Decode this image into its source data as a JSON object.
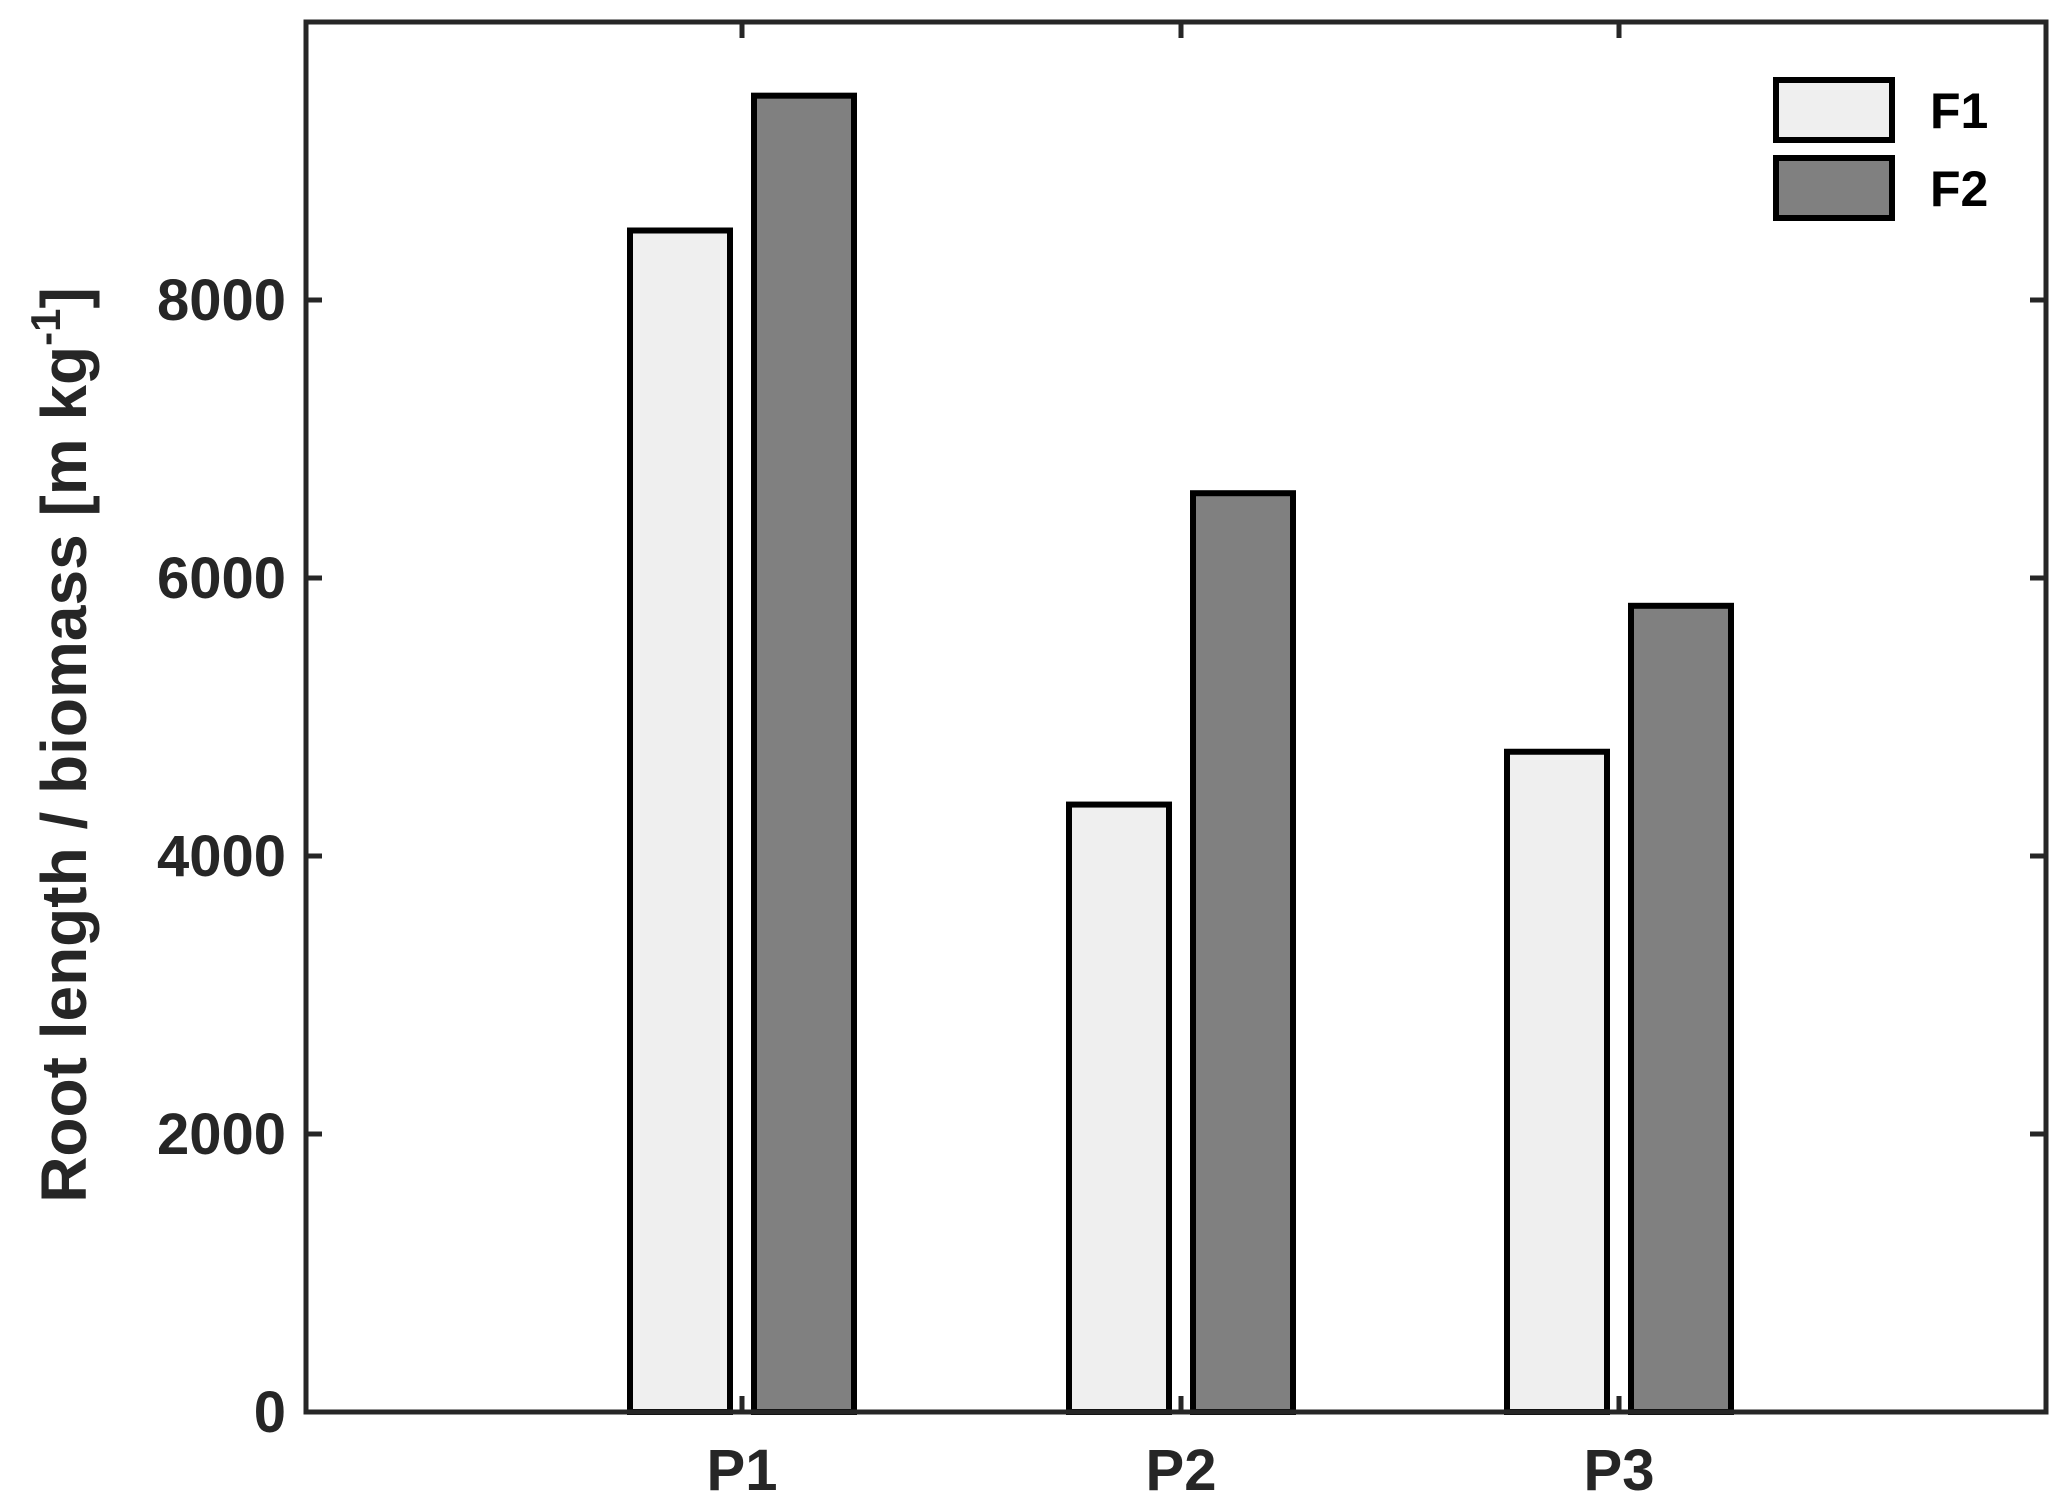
{
  "chart_data": {
    "type": "bar",
    "title": "",
    "xlabel": "",
    "ylabel": {
      "main": "Root length / biomass [m kg",
      "sup": "-1",
      "close": "]"
    },
    "categories": [
      "P1",
      "P2",
      "P3"
    ],
    "series": [
      {
        "name": "F1",
        "values": [
          8500,
          4370,
          4750
        ],
        "color": "#efefef"
      },
      {
        "name": "F2",
        "values": [
          9470,
          6610,
          5800
        ],
        "color": "#808080"
      }
    ],
    "ylim": [
      0,
      10000
    ],
    "yticks": [
      0,
      2000,
      4000,
      6000,
      8000
    ],
    "ytick_labels": [
      "0",
      "2000",
      "4000",
      "6000",
      "8000"
    ],
    "grid": false,
    "legend_position": "top-right",
    "colors": {
      "axis": "#262626",
      "bar_edge": "#000000",
      "background": "#ffffff"
    }
  }
}
